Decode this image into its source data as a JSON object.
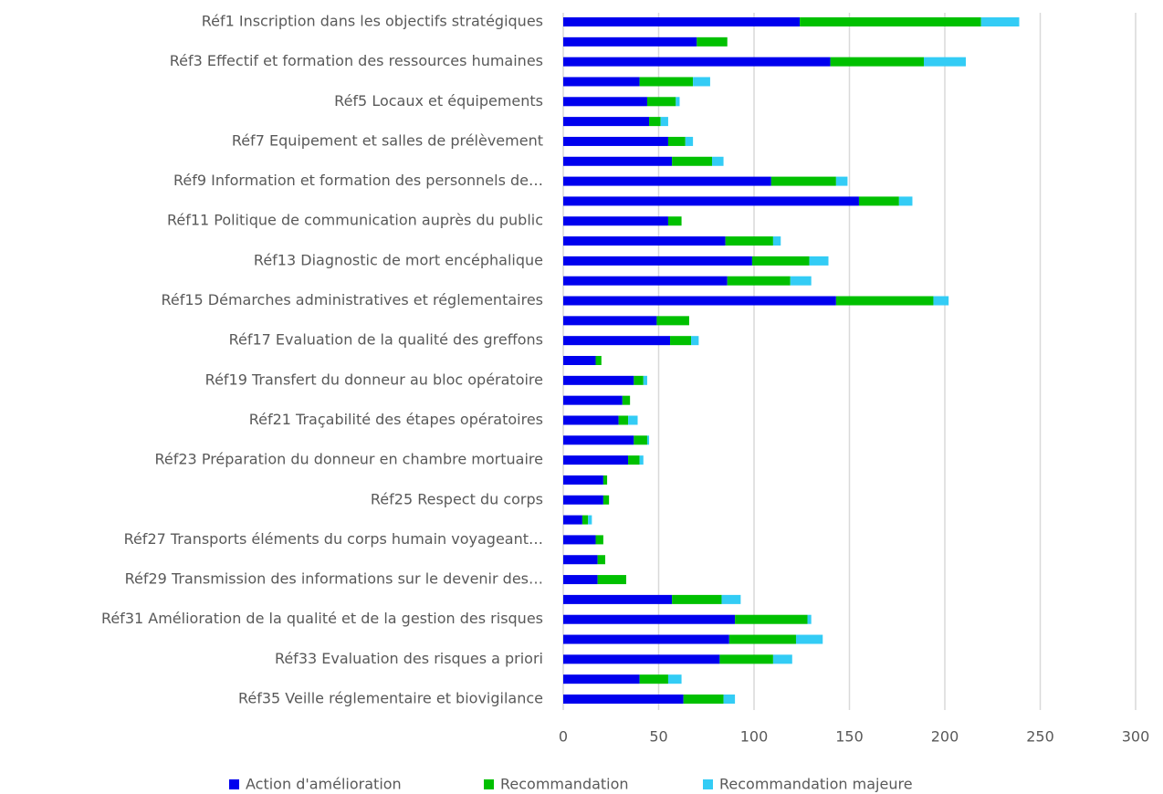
{
  "chart_data": {
    "type": "bar",
    "orientation": "horizontal",
    "stacked": true,
    "categories": [
      "Réf1 Inscription dans les objectifs stratégiques",
      null,
      "Réf3 Effectif et formation des ressources humaines",
      null,
      "Réf5 Locaux et équipements",
      null,
      "Réf7 Equipement et salles de prélèvement",
      null,
      "Réf9 Information et formation des personnels de…",
      null,
      "Réf11 Politique de communication auprès du public",
      null,
      "Réf13 Diagnostic de mort encéphalique",
      null,
      "Réf15 Démarches administratives et réglementaires",
      null,
      "Réf17 Evaluation de la qualité des greffons",
      null,
      "Réf19 Transfert du donneur au bloc opératoire",
      null,
      "Réf21 Traçabilité des étapes opératoires",
      null,
      "Réf23 Préparation du donneur en chambre mortuaire",
      null,
      "Réf25 Respect du corps",
      null,
      "Réf27 Transports éléments du corps humain voyageant…",
      null,
      "Réf29 Transmission des informations sur le devenir des…",
      null,
      "Réf31 Amélioration de la qualité et de la gestion des risques",
      null,
      "Réf33 Evaluation des risques a priori",
      null,
      "Réf35 Veille réglementaire et biovigilance"
    ],
    "series": [
      {
        "name": "Action d'amélioration",
        "color": "#0000ee",
        "values": [
          124,
          70,
          140,
          40,
          44,
          45,
          55,
          57,
          109,
          155,
          55,
          85,
          99,
          86,
          143,
          49,
          56,
          17,
          37,
          31,
          29,
          37,
          34,
          21,
          21,
          10,
          17,
          18,
          18,
          57,
          90,
          87,
          82,
          40,
          63
        ]
      },
      {
        "name": "Recommandation",
        "color": "#00c000",
        "values": [
          95,
          16,
          49,
          28,
          15,
          6,
          9,
          21,
          34,
          21,
          7,
          25,
          30,
          33,
          51,
          17,
          11,
          3,
          5,
          4,
          5,
          7,
          6,
          2,
          3,
          3,
          4,
          4,
          15,
          26,
          38,
          35,
          28,
          15,
          21
        ]
      },
      {
        "name": "Recommandation majeure",
        "color": "#33ccf5",
        "values": [
          20,
          0,
          22,
          9,
          2,
          4,
          4,
          6,
          6,
          7,
          0,
          4,
          10,
          11,
          8,
          0,
          4,
          0,
          2,
          0,
          5,
          1,
          2,
          0,
          0,
          2,
          0,
          0,
          0,
          10,
          2,
          14,
          10,
          7,
          6
        ]
      }
    ],
    "xlim": [
      0,
      300
    ],
    "xticks": [
      0,
      50,
      100,
      150,
      200,
      250,
      300
    ],
    "grid": true,
    "legend": "bottom"
  }
}
